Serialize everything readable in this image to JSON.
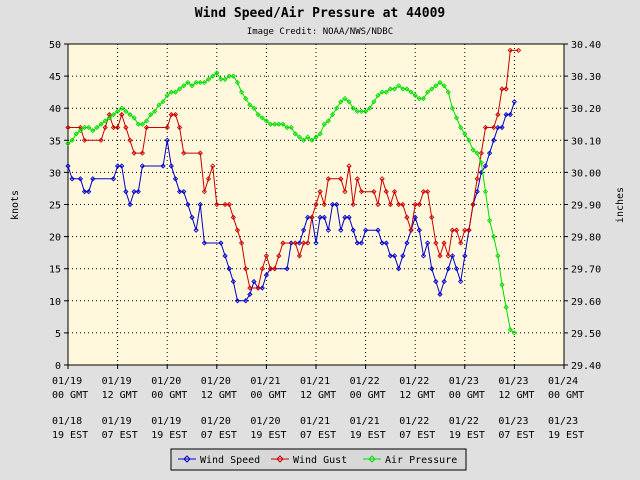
{
  "chart_data": {
    "type": "line",
    "title": "Wind Speed/Air Pressure at 44009",
    "subtitle": "Image Credit: NOAA/NWS/NDBC",
    "ylabel_left": "knots",
    "ylabel_right": "inches",
    "ylim_left": [
      0,
      50
    ],
    "ylim_right": [
      29.4,
      30.4
    ],
    "yticks_left": [
      "0",
      "5",
      "10",
      "15",
      "20",
      "25",
      "30",
      "35",
      "40",
      "45",
      "50"
    ],
    "yticks_right": [
      "29.40",
      "29.50",
      "29.60",
      "29.70",
      "29.80",
      "29.90",
      "30.00",
      "30.10",
      "30.20",
      "30.30",
      "30.40"
    ],
    "x_range_hours": [
      0,
      120
    ],
    "x_ticks": [
      {
        "gmt": [
          "01/19",
          "00 GMT"
        ],
        "est": [
          "01/18",
          "19 EST"
        ]
      },
      {
        "gmt": [
          "01/19",
          "12 GMT"
        ],
        "est": [
          "01/19",
          "07 EST"
        ]
      },
      {
        "gmt": [
          "01/20",
          "00 GMT"
        ],
        "est": [
          "01/19",
          "19 EST"
        ]
      },
      {
        "gmt": [
          "01/20",
          "12 GMT"
        ],
        "est": [
          "01/20",
          "07 EST"
        ]
      },
      {
        "gmt": [
          "01/21",
          "00 GMT"
        ],
        "est": [
          "01/20",
          "19 EST"
        ]
      },
      {
        "gmt": [
          "01/21",
          "12 GMT"
        ],
        "est": [
          "01/21",
          "07 EST"
        ]
      },
      {
        "gmt": [
          "01/22",
          "00 GMT"
        ],
        "est": [
          "01/21",
          "19 EST"
        ]
      },
      {
        "gmt": [
          "01/22",
          "12 GMT"
        ],
        "est": [
          "01/22",
          "07 EST"
        ]
      },
      {
        "gmt": [
          "01/23",
          "00 GMT"
        ],
        "est": [
          "01/22",
          "19 EST"
        ]
      },
      {
        "gmt": [
          "01/23",
          "12 GMT"
        ],
        "est": [
          "01/23",
          "07 EST"
        ]
      },
      {
        "gmt": [
          "01/24",
          "00 GMT"
        ],
        "est": [
          "01/23",
          "19 EST"
        ]
      }
    ],
    "grid": true,
    "legend_position": "bottom",
    "colors": {
      "plot_bg": "#fff8dc",
      "page_bg": "#e0e0e0",
      "grid": "#000000"
    },
    "series": [
      {
        "name": "Wind Speed",
        "axis": "left",
        "color": "#0000cc",
        "points": [
          [
            0,
            31
          ],
          [
            1,
            29
          ],
          [
            3,
            29
          ],
          [
            4,
            27
          ],
          [
            5,
            27
          ],
          [
            6,
            29
          ],
          [
            11,
            29
          ],
          [
            12,
            31
          ],
          [
            13,
            31
          ],
          [
            14,
            27
          ],
          [
            15,
            25
          ],
          [
            16,
            27
          ],
          [
            17,
            27
          ],
          [
            18,
            31
          ],
          [
            23,
            31
          ],
          [
            24,
            35
          ],
          [
            25,
            31
          ],
          [
            26,
            29
          ],
          [
            27,
            27
          ],
          [
            28,
            27
          ],
          [
            29,
            25
          ],
          [
            30,
            23
          ],
          [
            31,
            21
          ],
          [
            32,
            25
          ],
          [
            33,
            19
          ],
          [
            37,
            19
          ],
          [
            38,
            17
          ],
          [
            39,
            15
          ],
          [
            40,
            13
          ],
          [
            41,
            10
          ],
          [
            43,
            10
          ],
          [
            44,
            11
          ],
          [
            45,
            13
          ],
          [
            46,
            12
          ],
          [
            47,
            12
          ],
          [
            48,
            14
          ],
          [
            49,
            15
          ],
          [
            53,
            15
          ],
          [
            54,
            19
          ],
          [
            56,
            19
          ],
          [
            57,
            21
          ],
          [
            58,
            23
          ],
          [
            59,
            23
          ],
          [
            60,
            19
          ],
          [
            61,
            23
          ],
          [
            62,
            23
          ],
          [
            63,
            21
          ],
          [
            64,
            25
          ],
          [
            65,
            25
          ],
          [
            66,
            21
          ],
          [
            67,
            23
          ],
          [
            68,
            23
          ],
          [
            69,
            21
          ],
          [
            70,
            19
          ],
          [
            71,
            19
          ],
          [
            72,
            21
          ],
          [
            75,
            21
          ],
          [
            76,
            19
          ],
          [
            77,
            19
          ],
          [
            78,
            17
          ],
          [
            79,
            17
          ],
          [
            80,
            15
          ],
          [
            81,
            17
          ],
          [
            82,
            19
          ],
          [
            83,
            21
          ],
          [
            84,
            23
          ],
          [
            85,
            21
          ],
          [
            86,
            17
          ],
          [
            87,
            19
          ],
          [
            88,
            15
          ],
          [
            89,
            13
          ],
          [
            90,
            11
          ],
          [
            91,
            13
          ],
          [
            92,
            15
          ],
          [
            93,
            17
          ],
          [
            94,
            15
          ],
          [
            95,
            13
          ],
          [
            96,
            17
          ],
          [
            97,
            21
          ],
          [
            98,
            25
          ],
          [
            99,
            27
          ],
          [
            100,
            30
          ],
          [
            101,
            31
          ],
          [
            102,
            33
          ],
          [
            103,
            35
          ],
          [
            104,
            37
          ],
          [
            105,
            37
          ],
          [
            106,
            39
          ],
          [
            107,
            39
          ],
          [
            108,
            41
          ]
        ]
      },
      {
        "name": "Wind Gust",
        "axis": "left",
        "color": "#cc0000",
        "points": [
          [
            0,
            37
          ],
          [
            3,
            37
          ],
          [
            4,
            35
          ],
          [
            8,
            35
          ],
          [
            9,
            37
          ],
          [
            10,
            39
          ],
          [
            11,
            37
          ],
          [
            12,
            37
          ],
          [
            13,
            39
          ],
          [
            14,
            37
          ],
          [
            15,
            35
          ],
          [
            16,
            33
          ],
          [
            18,
            33
          ],
          [
            19,
            37
          ],
          [
            24,
            37
          ],
          [
            25,
            39
          ],
          [
            26,
            39
          ],
          [
            27,
            37
          ],
          [
            28,
            33
          ],
          [
            32,
            33
          ],
          [
            33,
            27
          ],
          [
            34,
            29
          ],
          [
            35,
            31
          ],
          [
            36,
            25
          ],
          [
            38,
            25
          ],
          [
            39,
            25
          ],
          [
            40,
            23
          ],
          [
            41,
            21
          ],
          [
            42,
            19
          ],
          [
            43,
            15
          ],
          [
            44,
            12
          ],
          [
            46,
            12
          ],
          [
            47,
            15
          ],
          [
            48,
            17
          ],
          [
            49,
            15
          ],
          [
            50,
            15
          ],
          [
            51,
            17
          ],
          [
            52,
            19
          ],
          [
            55,
            19
          ],
          [
            56,
            17
          ],
          [
            57,
            19
          ],
          [
            58,
            19
          ],
          [
            59,
            23
          ],
          [
            60,
            25
          ],
          [
            61,
            27
          ],
          [
            62,
            25
          ],
          [
            63,
            29
          ],
          [
            66,
            29
          ],
          [
            67,
            27
          ],
          [
            68,
            31
          ],
          [
            69,
            25
          ],
          [
            70,
            29
          ],
          [
            71,
            27
          ],
          [
            74,
            27
          ],
          [
            75,
            25
          ],
          [
            76,
            29
          ],
          [
            77,
            27
          ],
          [
            78,
            25
          ],
          [
            79,
            27
          ],
          [
            80,
            25
          ],
          [
            81,
            25
          ],
          [
            82,
            23
          ],
          [
            83,
            21
          ],
          [
            84,
            25
          ],
          [
            85,
            25
          ],
          [
            86,
            27
          ],
          [
            87,
            27
          ],
          [
            88,
            23
          ],
          [
            89,
            19
          ],
          [
            90,
            17
          ],
          [
            91,
            19
          ],
          [
            92,
            17
          ],
          [
            93,
            21
          ],
          [
            94,
            21
          ],
          [
            95,
            19
          ],
          [
            96,
            21
          ],
          [
            97,
            21
          ],
          [
            98,
            25
          ],
          [
            99,
            29
          ],
          [
            100,
            33
          ],
          [
            101,
            37
          ],
          [
            103,
            37
          ],
          [
            104,
            39
          ],
          [
            105,
            43
          ],
          [
            106,
            43
          ],
          [
            107,
            49
          ],
          [
            109,
            49
          ]
        ]
      },
      {
        "name": "Air Pressure",
        "axis": "right",
        "color": "#00dd00",
        "points": [
          [
            0,
            30.09
          ],
          [
            1,
            30.1
          ],
          [
            2,
            30.12
          ],
          [
            3,
            30.13
          ],
          [
            4,
            30.14
          ],
          [
            5,
            30.14
          ],
          [
            6,
            30.13
          ],
          [
            7,
            30.14
          ],
          [
            8,
            30.15
          ],
          [
            9,
            30.16
          ],
          [
            10,
            30.17
          ],
          [
            11,
            30.18
          ],
          [
            12,
            30.19
          ],
          [
            13,
            30.2
          ],
          [
            14,
            30.19
          ],
          [
            15,
            30.18
          ],
          [
            16,
            30.17
          ],
          [
            17,
            30.15
          ],
          [
            18,
            30.15
          ],
          [
            19,
            30.16
          ],
          [
            20,
            30.18
          ],
          [
            21,
            30.19
          ],
          [
            22,
            30.21
          ],
          [
            23,
            30.22
          ],
          [
            24,
            30.24
          ],
          [
            25,
            30.25
          ],
          [
            26,
            30.25
          ],
          [
            27,
            30.26
          ],
          [
            28,
            30.27
          ],
          [
            29,
            30.28
          ],
          [
            30,
            30.27
          ],
          [
            31,
            30.28
          ],
          [
            32,
            30.28
          ],
          [
            33,
            30.28
          ],
          [
            34,
            30.29
          ],
          [
            35,
            30.3
          ],
          [
            36,
            30.31
          ],
          [
            37,
            30.29
          ],
          [
            38,
            30.29
          ],
          [
            39,
            30.3
          ],
          [
            40,
            30.3
          ],
          [
            41,
            30.28
          ],
          [
            42,
            30.25
          ],
          [
            43,
            30.23
          ],
          [
            44,
            30.21
          ],
          [
            45,
            30.2
          ],
          [
            46,
            30.18
          ],
          [
            47,
            30.17
          ],
          [
            48,
            30.16
          ],
          [
            49,
            30.15
          ],
          [
            50,
            30.15
          ],
          [
            51,
            30.15
          ],
          [
            52,
            30.15
          ],
          [
            53,
            30.14
          ],
          [
            54,
            30.14
          ],
          [
            55,
            30.12
          ],
          [
            56,
            30.11
          ],
          [
            57,
            30.1
          ],
          [
            58,
            30.11
          ],
          [
            59,
            30.1
          ],
          [
            60,
            30.11
          ],
          [
            61,
            30.12
          ],
          [
            62,
            30.15
          ],
          [
            63,
            30.16
          ],
          [
            64,
            30.18
          ],
          [
            65,
            30.2
          ],
          [
            66,
            30.22
          ],
          [
            67,
            30.23
          ],
          [
            68,
            30.22
          ],
          [
            69,
            30.2
          ],
          [
            70,
            30.19
          ],
          [
            71,
            30.19
          ],
          [
            72,
            30.19
          ],
          [
            73,
            30.2
          ],
          [
            74,
            30.22
          ],
          [
            75,
            30.24
          ],
          [
            76,
            30.25
          ],
          [
            77,
            30.25
          ],
          [
            78,
            30.26
          ],
          [
            79,
            30.26
          ],
          [
            80,
            30.27
          ],
          [
            81,
            30.26
          ],
          [
            82,
            30.26
          ],
          [
            83,
            30.25
          ],
          [
            84,
            30.24
          ],
          [
            85,
            30.23
          ],
          [
            86,
            30.23
          ],
          [
            87,
            30.25
          ],
          [
            88,
            30.26
          ],
          [
            89,
            30.27
          ],
          [
            90,
            30.28
          ],
          [
            91,
            30.27
          ],
          [
            92,
            30.25
          ],
          [
            93,
            30.2
          ],
          [
            94,
            30.17
          ],
          [
            95,
            30.14
          ],
          [
            96,
            30.12
          ],
          [
            97,
            30.1
          ],
          [
            98,
            30.07
          ],
          [
            99,
            30.06
          ],
          [
            100,
            30.03
          ],
          [
            101,
            29.94
          ],
          [
            102,
            29.85
          ],
          [
            103,
            29.8
          ],
          [
            104,
            29.74
          ],
          [
            105,
            29.65
          ],
          [
            106,
            29.58
          ],
          [
            107,
            29.51
          ],
          [
            108,
            29.5
          ]
        ]
      }
    ]
  }
}
